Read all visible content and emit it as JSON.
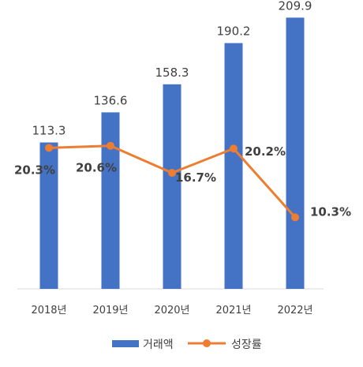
{
  "chart_data": {
    "type": "bar+line",
    "categories": [
      "2018년",
      "2019년",
      "2020년",
      "2021년",
      "2022년"
    ],
    "series": [
      {
        "name": "거래액",
        "type": "bar",
        "color": "#4472C4",
        "values": [
          113.3,
          136.6,
          158.3,
          190.2,
          209.9
        ],
        "labels": [
          "113.3",
          "136.6",
          "158.3",
          "190.2",
          "209.9"
        ]
      },
      {
        "name": "성장률",
        "type": "line",
        "color": "#ED7D31",
        "values": [
          20.3,
          20.6,
          16.7,
          20.2,
          10.3
        ],
        "labels": [
          "20.3%",
          "20.6%",
          "16.7%",
          "20.2%",
          "10.3%"
        ]
      }
    ],
    "bar_axis_range": [
      0,
      215
    ],
    "line_axis_range": [
      0,
      40
    ],
    "grid": false,
    "legend_position": "bottom"
  }
}
